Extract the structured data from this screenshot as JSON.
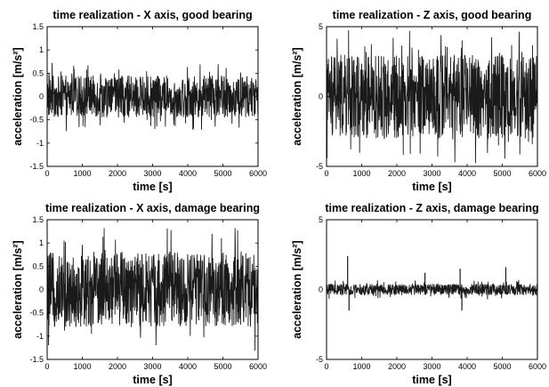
{
  "chart_data": [
    {
      "type": "line",
      "title": "time realization - X axis, good bearing",
      "xlabel": "time [s]",
      "ylabel": "acceleration [m/s²]",
      "xlim": [
        0,
        6000
      ],
      "ylim": [
        -1.5,
        1.5
      ],
      "xticks": [
        0,
        1000,
        2000,
        3000,
        4000,
        5000,
        6000
      ],
      "yticks": [
        -1.5,
        -1,
        -0.5,
        0,
        0.5,
        1,
        1.5
      ],
      "xtick_labels": [
        "0",
        "1000",
        "2000",
        "3000",
        "4000",
        "5000",
        "6000"
      ],
      "ytick_labels": [
        "-1.5",
        "-1",
        "-0.5",
        "0",
        "0.5",
        "1",
        "1.5"
      ],
      "series_color": "#1a1a1a",
      "signal": {
        "dense_amplitude": 0.45,
        "peak_amplitude": 0.75,
        "spikes": []
      }
    },
    {
      "type": "line",
      "title": "time realization - Z axis, good bearing",
      "xlabel": "time [s]",
      "ylabel": "acceleration [m/s²]",
      "xlim": [
        0,
        6000
      ],
      "ylim": [
        -5,
        5
      ],
      "xticks": [
        0,
        1000,
        2000,
        3000,
        4000,
        5000,
        6000
      ],
      "yticks": [
        -5,
        0,
        5
      ],
      "xtick_labels": [
        "0",
        "1000",
        "2000",
        "3000",
        "4000",
        "5000",
        "6000"
      ],
      "ytick_labels": [
        "-5",
        "0",
        "5"
      ],
      "series_color": "#1a1a1a",
      "signal": {
        "dense_amplitude": 3.0,
        "peak_amplitude": 4.8,
        "spikes": []
      }
    },
    {
      "type": "line",
      "title": "time realization - X axis, damage bearing",
      "xlabel": "time [s]",
      "ylabel": "acceleration [m/s²]",
      "xlim": [
        0,
        6000
      ],
      "ylim": [
        -1.5,
        1.5
      ],
      "xticks": [
        0,
        1000,
        2000,
        3000,
        4000,
        5000,
        6000
      ],
      "yticks": [
        -1.5,
        -1,
        -0.5,
        0,
        0.5,
        1,
        1.5
      ],
      "xtick_labels": [
        "0",
        "1000",
        "2000",
        "3000",
        "4000",
        "5000",
        "6000"
      ],
      "ytick_labels": [
        "-1.5",
        "-1",
        "-0.5",
        "0",
        "0.5",
        "1",
        "1.5"
      ],
      "series_color": "#1a1a1a",
      "signal": {
        "dense_amplitude": 0.8,
        "peak_amplitude": 1.35,
        "spikes": []
      }
    },
    {
      "type": "line",
      "title": "time realization - Z axis, damage bearing",
      "xlabel": "time [s]",
      "ylabel": "acceleration [m/s²]",
      "xlim": [
        0,
        6000
      ],
      "ylim": [
        -5,
        5
      ],
      "xticks": [
        0,
        1000,
        2000,
        3000,
        4000,
        5000,
        6000
      ],
      "yticks": [
        -5,
        0,
        5
      ],
      "xtick_labels": [
        "0",
        "1000",
        "2000",
        "3000",
        "4000",
        "5000",
        "6000"
      ],
      "ytick_labels": [
        "-5",
        "0",
        "5"
      ],
      "series_color": "#1a1a1a",
      "signal": {
        "dense_amplitude": 0.4,
        "peak_amplitude": 0.7,
        "spikes": [
          {
            "x": 600,
            "y": 2.4
          },
          {
            "x": 640,
            "y": -1.5
          },
          {
            "x": 2800,
            "y": 1.2
          },
          {
            "x": 3800,
            "y": 1.5
          },
          {
            "x": 3850,
            "y": -1.5
          },
          {
            "x": 5100,
            "y": 1.6
          }
        ]
      }
    }
  ]
}
